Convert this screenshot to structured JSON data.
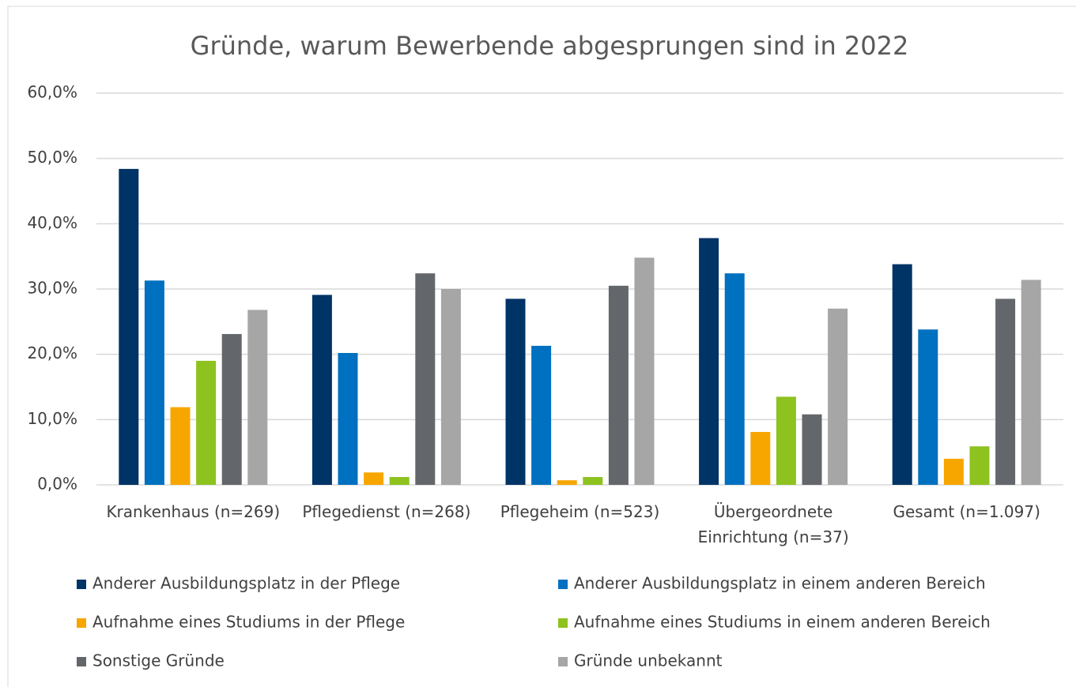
{
  "chart_data": {
    "type": "bar",
    "title": "Gründe, warum Bewerbende abgesprungen sind in 2022",
    "categories": [
      "Krankenhaus (n=269)",
      "Pflegedienst (n=268)",
      "Pflegeheim (n=523)",
      "Übergeordnete Einrichtung (n=37)",
      "Gesamt (n=1.097)"
    ],
    "series": [
      {
        "name": "Anderer Ausbildungsplatz in der Pflege",
        "color": "#003366",
        "values": [
          48.4,
          29.1,
          28.5,
          37.8,
          33.8
        ]
      },
      {
        "name": "Anderer Ausbildungsplatz in einem anderen Bereich",
        "color": "#0070c0",
        "values": [
          31.3,
          20.2,
          21.3,
          32.4,
          23.8
        ]
      },
      {
        "name": "Aufnahme eines Studiums in der Pflege",
        "color": "#f7a600",
        "values": [
          11.9,
          1.9,
          0.7,
          8.1,
          4.0
        ]
      },
      {
        "name": "Aufnahme eines Studiums in einem anderen Bereich",
        "color": "#8dc21f",
        "values": [
          19.0,
          1.2,
          1.2,
          13.5,
          5.9
        ]
      },
      {
        "name": "Sonstige Gründe",
        "color": "#63666a",
        "values": [
          23.1,
          32.4,
          30.5,
          10.8,
          28.5
        ]
      },
      {
        "name": "Gründe unbekannt",
        "color": "#a6a6a6",
        "values": [
          26.8,
          30.0,
          34.8,
          27.0,
          31.4
        ]
      }
    ],
    "ylim": [
      0,
      60
    ],
    "yticks": [
      {
        "value": 0,
        "label": "0,0%"
      },
      {
        "value": 10,
        "label": "10,0%"
      },
      {
        "value": 20,
        "label": "20,0%"
      },
      {
        "value": 30,
        "label": "30,0%"
      },
      {
        "value": 40,
        "label": "40,0%"
      },
      {
        "value": 50,
        "label": "50,0%"
      },
      {
        "value": 60,
        "label": "60,0%"
      }
    ],
    "grid": true,
    "legend": "bottom"
  }
}
